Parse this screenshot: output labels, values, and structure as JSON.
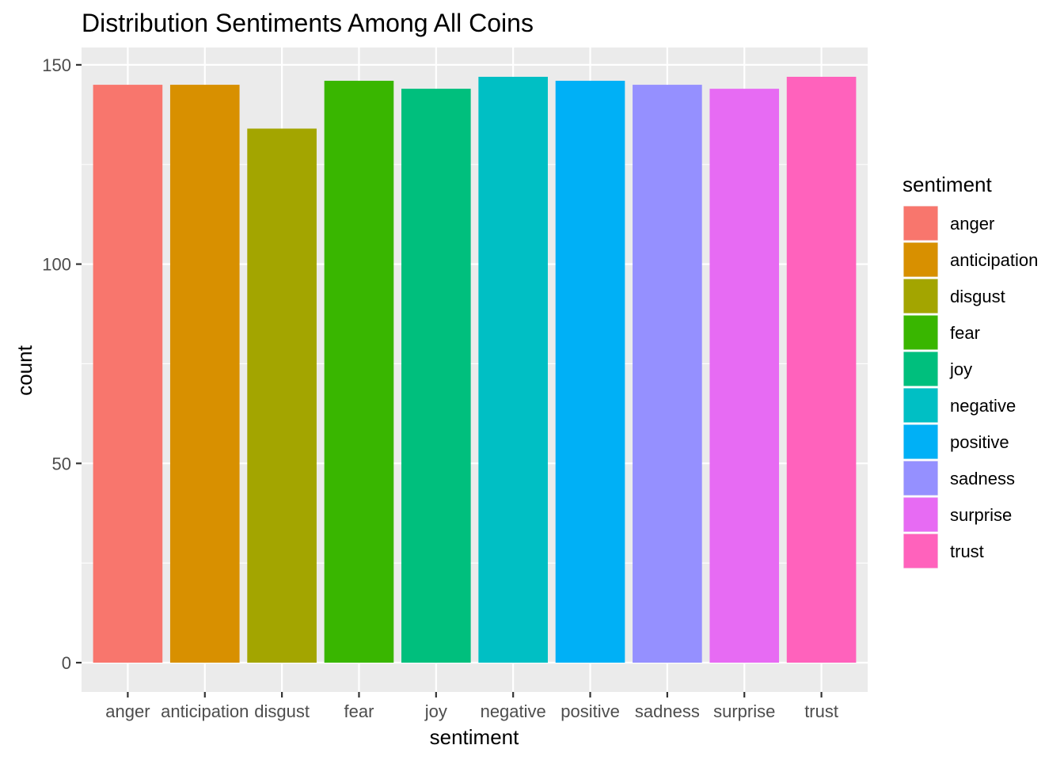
{
  "chart_data": {
    "type": "bar",
    "title": "Distribution Sentiments Among All Coins",
    "xlabel": "sentiment",
    "ylabel": "count",
    "categories": [
      "anger",
      "anticipation",
      "disgust",
      "fear",
      "joy",
      "negative",
      "positive",
      "sadness",
      "surprise",
      "trust"
    ],
    "values": [
      145,
      145,
      134,
      146,
      144,
      147,
      146,
      145,
      144,
      147
    ],
    "colors": [
      "#F8766D",
      "#D89000",
      "#A3A500",
      "#39B600",
      "#00BF7D",
      "#00BFC4",
      "#00B0F6",
      "#9590FF",
      "#E76BF3",
      "#FF62BC"
    ],
    "ylim": [
      -7.35,
      154.35
    ],
    "yticks": [
      0,
      50,
      100,
      150
    ],
    "ytick_labels": [
      "0",
      "50",
      "100",
      "150"
    ],
    "grid": true,
    "legend": {
      "title": "sentiment",
      "position": "right"
    },
    "panel_background": "#EBEBEB",
    "grid_color": "#FFFFFF"
  }
}
